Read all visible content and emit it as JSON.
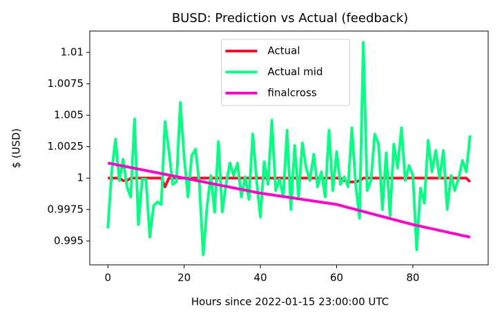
{
  "chart_data": {
    "type": "line",
    "title": "BUSD: Prediction vs Actual (feedback)",
    "x_label": "Hours since 2022-01-15 23:00:00 UTC",
    "y_label": "$ (USD)",
    "x": [
      0,
      1,
      2,
      3,
      4,
      5,
      6,
      7,
      8,
      9,
      10,
      11,
      12,
      13,
      14,
      15,
      16,
      17,
      18,
      19,
      20,
      21,
      22,
      23,
      24,
      25,
      26,
      27,
      28,
      29,
      30,
      31,
      32,
      33,
      34,
      35,
      36,
      37,
      38,
      39,
      40,
      41,
      42,
      43,
      44,
      45,
      46,
      47,
      48,
      49,
      50,
      51,
      52,
      53,
      54,
      55,
      56,
      57,
      58,
      59,
      60,
      61,
      62,
      63,
      64,
      65,
      66,
      67,
      68,
      69,
      70,
      71,
      72,
      73,
      74,
      75,
      76,
      77,
      78,
      79,
      80,
      81,
      82,
      83,
      84,
      85,
      86,
      87,
      88,
      89,
      90,
      91,
      92,
      93,
      94,
      95
    ],
    "series": [
      {
        "name": "Actual",
        "color": "#f7102e",
        "values": [
          1,
          1,
          1,
          1,
          0.9998,
          0.9998,
          1,
          1,
          1,
          1,
          1,
          1,
          1,
          1,
          1,
          0.9993,
          1,
          1,
          1,
          1,
          1,
          1,
          1,
          1,
          1,
          1,
          1,
          1,
          1,
          1,
          1,
          1,
          1,
          1,
          1,
          1,
          1,
          1,
          1,
          1,
          1,
          1,
          1,
          1,
          1,
          1,
          1,
          1,
          1,
          1,
          1,
          1,
          1,
          1,
          1,
          1,
          1,
          1,
          1,
          1,
          1,
          1,
          0.9998,
          0.9997,
          0.9997,
          0.9997,
          0.9998,
          1,
          1,
          1,
          1,
          1,
          1,
          1,
          1,
          1,
          1,
          1,
          1,
          1,
          1,
          1,
          1,
          1,
          1,
          1,
          1,
          1,
          1,
          1,
          1,
          1,
          1,
          1,
          1,
          0.9997
        ]
      },
      {
        "name": "Actual mid",
        "color": "#0afc86",
        "values": [
          0.996,
          1.0005,
          1.0031,
          0.9998,
          1.0015,
          0.9993,
          0.9985,
          1.0047,
          0.9963,
          0.9999,
          0.9999,
          0.9953,
          0.9978,
          0.9981,
          0.9979,
          1.0045,
          1.0022,
          0.9995,
          0.9997,
          1.006,
          1.0017,
          0.9985,
          1.0018,
          1.0023,
          0.9995,
          0.9939,
          0.9977,
          1.0002,
          0.9973,
          1.0029,
          0.9973,
          0.9995,
          1.0012,
          1.0002,
          1.0012,
          0.9985,
          1.0001,
          0.9983,
          1.0035,
          0.9998,
          0.9969,
          1.0013,
          0.9995,
          1.0046,
          0.999,
          0.9999,
          0.9985,
          1.0038,
          0.9975,
          1.0026,
          0.9985,
          1.0028,
          1.0008,
          0.9998,
          1.0019,
          0.9993,
          1.0005,
          0.9985,
          1.0038,
          0.999,
          1.0021,
          0.9995,
          1.0001,
          0.9993,
          1.004,
          0.9995,
          0.9968,
          1.0108,
          0.999,
          0.9998,
          1.0035,
          1.0027,
          0.9975,
          1.002,
          0.997,
          1.0027,
          1.0008,
          1.004,
          0.9998,
          1.001,
          1.0002,
          0.9943,
          0.9992,
          0.998,
          1.003,
          1.0005,
          1.0022,
          1.0,
          1.0022,
          0.9975,
          1.0002,
          0.999,
          1.0,
          1.0014,
          1.0005,
          1.0034
        ]
      },
      {
        "name": "finalcross",
        "color": "#ff00c6",
        "values": [
          1.0012,
          1.00114,
          1.00108,
          1.00102,
          1.00096,
          1.0009,
          1.00084,
          1.00078,
          1.00072,
          1.00066,
          1.0006,
          1.00054,
          1.00048,
          1.00042,
          1.00036,
          1.0003,
          1.00024,
          1.00018,
          1.00012,
          1.00006,
          1.0,
          0.99994,
          0.99988,
          0.99982,
          0.99976,
          0.9997,
          0.99964,
          0.99958,
          0.99952,
          0.99946,
          0.9994,
          0.99934,
          0.99928,
          0.99922,
          0.99916,
          0.9991,
          0.99904,
          0.99898,
          0.99892,
          0.99886,
          0.9988,
          0.99876,
          0.99871,
          0.99867,
          0.99862,
          0.99858,
          0.99853,
          0.99849,
          0.99844,
          0.9984,
          0.99835,
          0.99831,
          0.99826,
          0.99822,
          0.99817,
          0.99813,
          0.99808,
          0.99804,
          0.99799,
          0.99795,
          0.9979,
          0.99782,
          0.99774,
          0.99766,
          0.99758,
          0.9975,
          0.99742,
          0.99734,
          0.99726,
          0.99718,
          0.9971,
          0.99702,
          0.99694,
          0.99686,
          0.99678,
          0.9967,
          0.99662,
          0.99654,
          0.99646,
          0.99638,
          0.9963,
          0.99623,
          0.99617,
          0.9961,
          0.99603,
          0.99597,
          0.9959,
          0.99583,
          0.99577,
          0.9957,
          0.99563,
          0.99557,
          0.9955,
          0.99543,
          0.99537,
          0.9953
        ]
      }
    ],
    "xlim": [
      -4.75,
      99.75
    ],
    "xticks": [
      0,
      20,
      40,
      60,
      80
    ],
    "ylim": [
      0.9931,
      1.0117
    ],
    "yticks": [
      0.995,
      0.9975,
      1,
      1.0025,
      1.005,
      1.0075,
      1.01
    ],
    "legend": "upper center",
    "grid": false
  }
}
